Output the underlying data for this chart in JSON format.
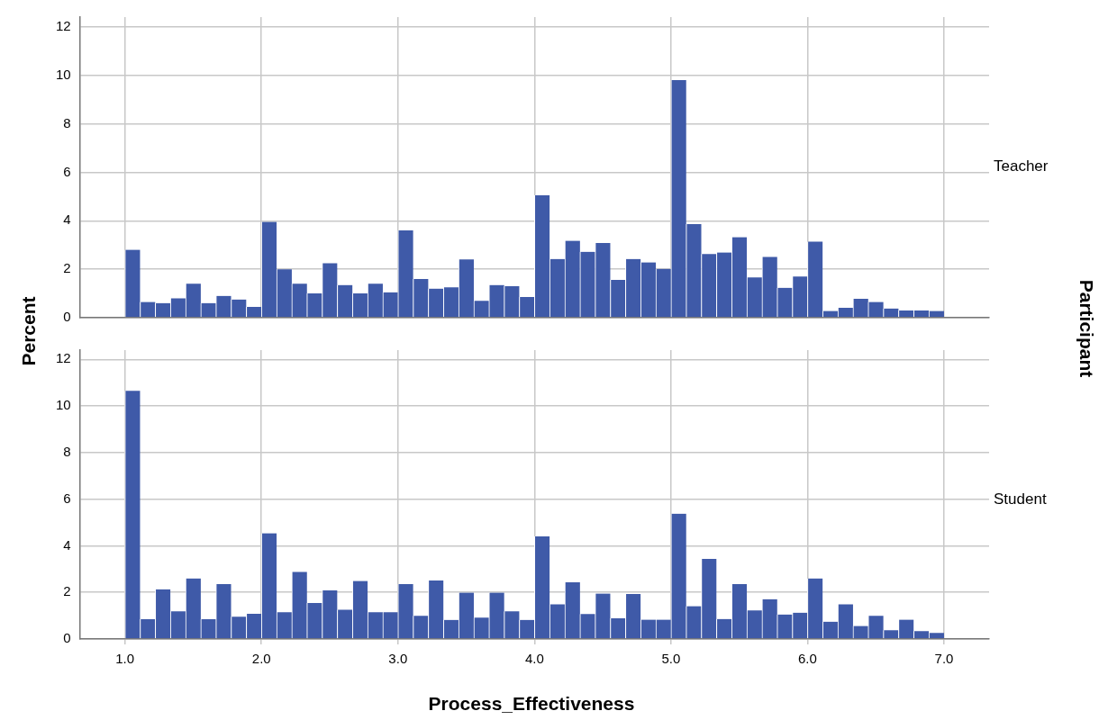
{
  "chart_data": [
    {
      "type": "histogram",
      "ylabel": "Percent",
      "y2label": "Participant",
      "annotations": [
        "Teacher"
      ],
      "color": "#3f5aa8",
      "bins": [
        1,
        1.1111,
        1.2222,
        1.3333,
        1.4444,
        1.5556,
        1.6667,
        1.7778,
        1.8889,
        2,
        2.1111,
        2.2222,
        2.3333,
        2.4444,
        2.5556,
        2.6667,
        2.7778,
        2.8889,
        3,
        3.1111,
        3.2222,
        3.3333,
        3.4444,
        3.5556,
        3.6667,
        3.7778,
        3.8889,
        4,
        4.1111,
        4.2222,
        4.3333,
        4.4444,
        4.5556,
        4.6667,
        4.7778,
        4.8889,
        5,
        5.1111,
        5.2222,
        5.3333,
        5.4444,
        5.5556,
        5.6667,
        5.7778,
        5.8889,
        6,
        6.1111,
        6.2222,
        6.3333,
        6.4444,
        6.5556,
        6.6667,
        6.7778,
        6.8889,
        7
      ],
      "values": [
        2.8,
        0.65,
        0.6,
        0.8,
        1.4,
        0.6,
        0.9,
        0.75,
        0.45,
        3.95,
        2.0,
        1.4,
        1.0,
        2.25,
        1.35,
        1.0,
        1.4,
        1.05,
        3.6,
        1.6,
        1.2,
        1.25,
        2.4,
        0.7,
        1.35,
        1.3,
        0.85,
        5.05,
        2.42,
        3.17,
        2.72,
        3.08,
        1.56,
        2.42,
        2.28,
        2.01,
        9.8,
        3.86,
        2.63,
        2.69,
        3.32,
        1.66,
        2.51,
        1.23,
        1.7,
        3.14,
        0.28,
        0.41,
        0.78,
        0.65,
        0.38,
        0.3,
        0.3,
        0.28
      ],
      "xlim": [
        0.67,
        7.33
      ],
      "xticks": [
        {
          "value": 1,
          "label": null
        },
        {
          "value": 2,
          "label": null
        },
        {
          "value": 3,
          "label": null
        },
        {
          "value": 4,
          "label": null
        },
        {
          "value": 5,
          "label": null
        },
        {
          "value": 6,
          "label": null
        },
        {
          "value": 7,
          "label": null
        }
      ],
      "ylim": [
        0,
        12.4
      ],
      "yticks": [
        0,
        2,
        4,
        6,
        8,
        10,
        12
      ],
      "grid": true,
      "tick_labels": "y"
    },
    {
      "type": "histogram",
      "xlabel": "Process_Effectiveness",
      "annotations": [
        "Student"
      ],
      "color": "#3f5aa8",
      "bins": [
        1,
        1.1111,
        1.2222,
        1.3333,
        1.4444,
        1.5556,
        1.6667,
        1.7778,
        1.8889,
        2,
        2.1111,
        2.2222,
        2.3333,
        2.4444,
        2.5556,
        2.6667,
        2.7778,
        2.8889,
        3,
        3.1111,
        3.2222,
        3.3333,
        3.4444,
        3.5556,
        3.6667,
        3.7778,
        3.8889,
        4,
        4.1111,
        4.2222,
        4.3333,
        4.4444,
        4.5556,
        4.6667,
        4.7778,
        4.8889,
        5,
        5.1111,
        5.2222,
        5.3333,
        5.4444,
        5.5556,
        5.6667,
        5.7778,
        5.8889,
        6,
        6.1111,
        6.2222,
        6.3333,
        6.4444,
        6.5556,
        6.6667,
        6.7778,
        6.8889,
        7
      ],
      "values": [
        10.65,
        0.85,
        2.13,
        1.19,
        2.6,
        0.85,
        2.36,
        0.96,
        1.08,
        4.54,
        1.15,
        2.88,
        1.55,
        2.09,
        1.26,
        2.49,
        1.15,
        1.15,
        2.36,
        0.99,
        2.51,
        0.82,
        1.99,
        0.92,
        1.99,
        1.19,
        0.82,
        4.4,
        1.49,
        2.43,
        1.07,
        1.95,
        0.89,
        1.93,
        0.83,
        0.83,
        5.38,
        1.41,
        3.44,
        0.86,
        2.36,
        1.23,
        1.71,
        1.05,
        1.13,
        2.6,
        0.74,
        1.49,
        0.56,
        0.99,
        0.38,
        0.83,
        0.34,
        0.26
      ],
      "xlim": [
        0.67,
        7.33
      ],
      "xticks": [
        {
          "value": 1,
          "label": "1.0"
        },
        {
          "value": 2,
          "label": "2.0"
        },
        {
          "value": 3,
          "label": "3.0"
        },
        {
          "value": 4,
          "label": "4.0"
        },
        {
          "value": 5,
          "label": "5.0"
        },
        {
          "value": 6,
          "label": "6.0"
        },
        {
          "value": 7,
          "label": "7.0"
        }
      ],
      "ylim": [
        0,
        12.4
      ],
      "yticks": [
        0,
        2,
        4,
        6,
        8,
        10,
        12
      ],
      "grid": true
    }
  ]
}
